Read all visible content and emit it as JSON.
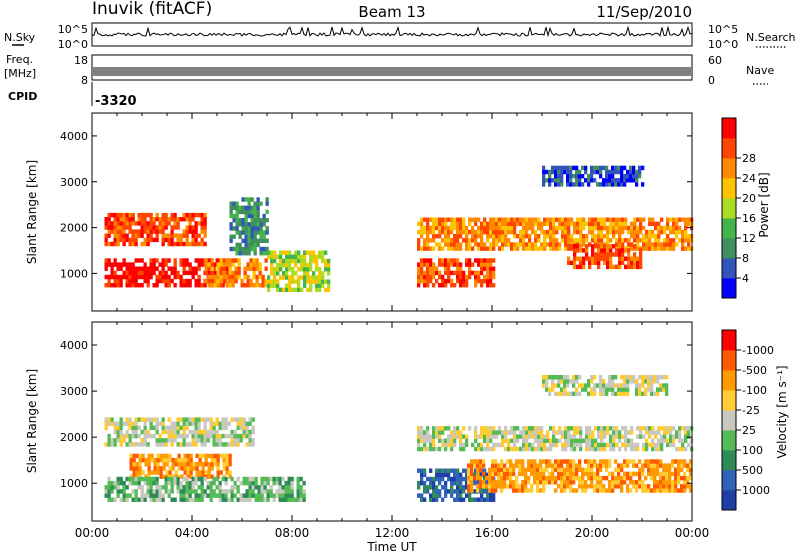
{
  "header": {
    "station": "Inuvik (fitACF)",
    "beam": "Beam 13",
    "date": "11/Sep/2010"
  },
  "summary_panels": {
    "nsky_label": "N.Sky",
    "nsky_ticks": [
      "10^5",
      "10^0"
    ],
    "nsearch_label": "N.Search",
    "freq_label_line1": "Freq.",
    "freq_label_line2": "[MHz]",
    "freq_ticks": [
      "18",
      "8"
    ],
    "nave_label": "Nave",
    "nave_ticks": [
      "60",
      "0"
    ],
    "cpid_label": "CPID",
    "cpid_value": "-3320"
  },
  "colors": {
    "power_scale": [
      "#0000ff",
      "#3355bb",
      "#3f8f5f",
      "#44b44a",
      "#aadd22",
      "#ffc400",
      "#ff8a00",
      "#ff4500",
      "#ff0000"
    ],
    "velocity_scale": [
      "#ff0000",
      "#ff5a00",
      "#ff9a00",
      "#ffcc33",
      "#c8c8c0",
      "#55bb55",
      "#2e8b57",
      "#2f62b8",
      "#1e3fa8"
    ]
  },
  "chart_data": [
    {
      "type": "heatmap",
      "title": "Power",
      "xlabel": "Time UT",
      "ylabel": "Slant Range [km]",
      "x_ticks": [
        "00:00",
        "04:00",
        "08:00",
        "12:00",
        "16:00",
        "20:00",
        "00:00"
      ],
      "xlim_hours": [
        0,
        24
      ],
      "y_ticks": [
        1000,
        2000,
        3000,
        4000
      ],
      "ylim": [
        180,
        4500
      ],
      "colorbar_label": "Power [dB]",
      "colorbar_ticks": [
        4,
        8,
        12,
        16,
        20,
        24,
        28
      ],
      "bands": [
        {
          "t": [
            0.5,
            4.5
          ],
          "r": [
            1600,
            2300
          ],
          "level": 7
        },
        {
          "t": [
            0.5,
            5.5
          ],
          "r": [
            700,
            1300
          ],
          "level": 8
        },
        {
          "t": [
            4.5,
            7.0
          ],
          "r": [
            700,
            1300
          ],
          "level": 6
        },
        {
          "t": [
            5.5,
            7.0
          ],
          "r": [
            1400,
            2600
          ],
          "level": 2
        },
        {
          "t": [
            7.0,
            9.5
          ],
          "r": [
            600,
            1500
          ],
          "level": 4
        },
        {
          "t": [
            13.0,
            16.0
          ],
          "r": [
            700,
            1300
          ],
          "level": 7
        },
        {
          "t": [
            13.0,
            24.0
          ],
          "r": [
            1500,
            2200
          ],
          "level": 6
        },
        {
          "t": [
            18.0,
            22.0
          ],
          "r": [
            2900,
            3300
          ],
          "level": 1
        },
        {
          "t": [
            19.0,
            22.0
          ],
          "r": [
            1100,
            1600
          ],
          "level": 7
        }
      ]
    },
    {
      "type": "heatmap",
      "title": "Velocity",
      "xlabel": "Time UT",
      "ylabel": "Slant Range [km]",
      "x_ticks": [
        "00:00",
        "04:00",
        "08:00",
        "12:00",
        "16:00",
        "20:00",
        "00:00"
      ],
      "xlim_hours": [
        0,
        24
      ],
      "y_ticks": [
        1000,
        2000,
        3000,
        4000
      ],
      "ylim": [
        180,
        4500
      ],
      "colorbar_label": "Velocity [m s⁻¹]",
      "colorbar_ticks": [
        -1000,
        -500,
        -100,
        -25,
        25,
        100,
        500,
        1000
      ],
      "bands": [
        {
          "t": [
            0.5,
            6.5
          ],
          "r": [
            1800,
            2400
          ],
          "level": 4
        },
        {
          "t": [
            1.5,
            5.5
          ],
          "r": [
            1100,
            1600
          ],
          "level": 2
        },
        {
          "t": [
            0.5,
            8.5
          ],
          "r": [
            600,
            1100
          ],
          "level": 5
        },
        {
          "t": [
            13.0,
            24.0
          ],
          "r": [
            1700,
            2200
          ],
          "level": 4
        },
        {
          "t": [
            13.0,
            16.0
          ],
          "r": [
            600,
            1300
          ],
          "level": 7
        },
        {
          "t": [
            15.0,
            24.0
          ],
          "r": [
            800,
            1500
          ],
          "level": 2
        },
        {
          "t": [
            18.0,
            23.0
          ],
          "r": [
            2900,
            3300
          ],
          "level": 4
        }
      ]
    }
  ]
}
